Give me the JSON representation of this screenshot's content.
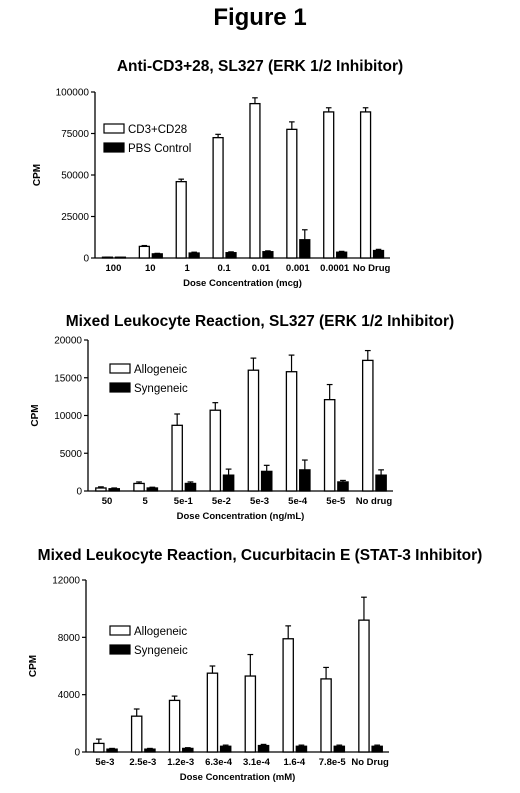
{
  "figure_title": "Figure 1",
  "chart_data": [
    {
      "type": "bar",
      "title": "Anti-CD3+28, SL327 (ERK 1/2 Inhibitor)",
      "xlabel": "Dose  Concentration (mcg)",
      "ylabel": "CPM",
      "ylim": [
        0,
        100000
      ],
      "yticks": [
        "0",
        "25000",
        "50000",
        "75000",
        "100000"
      ],
      "legend_position": "top-left",
      "categories": [
        "100",
        "10",
        "1",
        "0.1",
        "0.01",
        "0.001",
        "0.0001",
        "No Drug"
      ],
      "series": [
        {
          "name": "CD3+CD28",
          "color": "#ffffff",
          "values": [
            300,
            7000,
            46000,
            72500,
            93000,
            77500,
            88000,
            88000
          ],
          "errors": [
            200,
            500,
            1500,
            2000,
            3500,
            4500,
            2500,
            2500
          ]
        },
        {
          "name": "PBS Control",
          "color": "#000000",
          "values": [
            200,
            2500,
            3000,
            3200,
            3800,
            11000,
            3500,
            4500
          ],
          "errors": [
            100,
            300,
            500,
            500,
            500,
            6000,
            500,
            700
          ]
        }
      ]
    },
    {
      "type": "bar",
      "title": "Mixed Leukocyte Reaction, SL327 (ERK 1/2 Inhibitor)",
      "xlabel": "Dose Concentration (ng/mL)",
      "ylabel": "CPM",
      "ylim": [
        0,
        20000
      ],
      "yticks": [
        "0",
        "5000",
        "10000",
        "15000",
        "20000"
      ],
      "legend_position": "top-left",
      "categories": [
        "50",
        "5",
        "5e-1",
        "5e-2",
        "5e-3",
        "5e-4",
        "5e-5",
        "No drug"
      ],
      "series": [
        {
          "name": "Allogeneic",
          "color": "#ffffff",
          "values": [
            400,
            1000,
            8700,
            10700,
            16000,
            15800,
            12100,
            17300
          ],
          "errors": [
            150,
            200,
            1500,
            1000,
            1600,
            2200,
            2000,
            1300
          ]
        },
        {
          "name": "Syngeneic",
          "color": "#000000",
          "values": [
            300,
            400,
            1000,
            2100,
            2600,
            2800,
            1200,
            2100
          ],
          "errors": [
            100,
            100,
            200,
            800,
            800,
            1300,
            200,
            700
          ]
        }
      ]
    },
    {
      "type": "bar",
      "title": "Mixed Leukocyte Reaction, Cucurbitacin E (STAT-3 Inhibitor)",
      "xlabel": "Dose Concentration     (mM)",
      "ylabel": "CPM",
      "ylim": [
        0,
        12000
      ],
      "yticks": [
        "0",
        "4000",
        "8000",
        "12000"
      ],
      "legend_position": "top-left",
      "categories": [
        "5e-3",
        "2.5e-3",
        "1.2e-3",
        "6.3e-4",
        "3.1e-4",
        "1.6-4",
        "7.8e-5",
        "No Drug"
      ],
      "series": [
        {
          "name": "Allogeneic",
          "color": "#ffffff",
          "values": [
            600,
            2500,
            3600,
            5500,
            5300,
            7900,
            5100,
            9200
          ],
          "errors": [
            300,
            500,
            300,
            500,
            1500,
            900,
            800,
            1600
          ]
        },
        {
          "name": "Syngeneic",
          "color": "#000000",
          "values": [
            200,
            200,
            250,
            400,
            450,
            400,
            400,
            400
          ],
          "errors": [
            50,
            50,
            50,
            80,
            80,
            80,
            80,
            80
          ]
        }
      ]
    }
  ]
}
